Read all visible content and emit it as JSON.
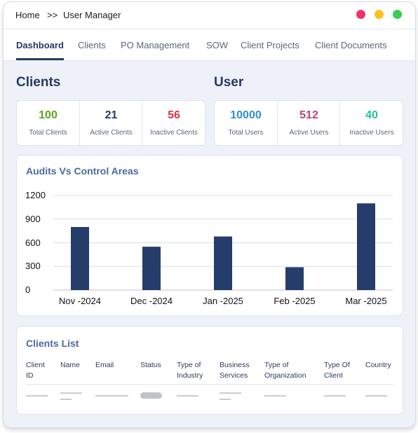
{
  "breadcrumb": {
    "home": "Home",
    "separator": ">>",
    "current": "User Manager"
  },
  "window_controls": {
    "close_color": "#f0336a",
    "minimize_color": "#fbc21c",
    "maximize_color": "#3ccc56"
  },
  "tabs": [
    {
      "label": "Dashboard",
      "active": true
    },
    {
      "label": "Clients",
      "active": false
    },
    {
      "label": "PO Management",
      "active": false
    },
    {
      "label": "SOW",
      "active": false
    },
    {
      "label": "Client Projects",
      "active": false
    },
    {
      "label": "Client Documents",
      "active": false
    }
  ],
  "clients_section": {
    "title": "Clients",
    "stats": [
      {
        "value": "100",
        "label": "Total Clients",
        "color": "#5aa51b"
      },
      {
        "value": "21",
        "label": "Active Clients",
        "color": "#263a63"
      },
      {
        "value": "56",
        "label": "Inactive Clients",
        "color": "#e0333f"
      }
    ]
  },
  "user_section": {
    "title": "User",
    "stats": [
      {
        "value": "10000",
        "label": "Total Users",
        "color": "#2c8fd6"
      },
      {
        "value": "512",
        "label": "Active Users",
        "color": "#c0417a"
      },
      {
        "value": "40",
        "label": "Inactive Users",
        "color": "#1fbf9e"
      }
    ]
  },
  "chart_data": {
    "type": "bar",
    "title": "Audits Vs Control Areas",
    "categories": [
      "Nov -2024",
      "Dec -2024",
      "Jan -2025",
      "Feb -2025",
      "Mar -2025"
    ],
    "values": [
      800,
      550,
      680,
      290,
      1100
    ],
    "yticks": [
      1200,
      900,
      600,
      300,
      0
    ],
    "ylim": [
      0,
      1200
    ],
    "grid": true,
    "bar_color": "#263d6b"
  },
  "clients_list": {
    "title": "Clients List",
    "columns": [
      "Client\nID",
      "Name",
      "Email",
      "Status",
      "Type of\nIndustry",
      "Business\nServices",
      "Type of\nOrganization",
      "Type Of\nClient",
      "Country"
    ]
  }
}
